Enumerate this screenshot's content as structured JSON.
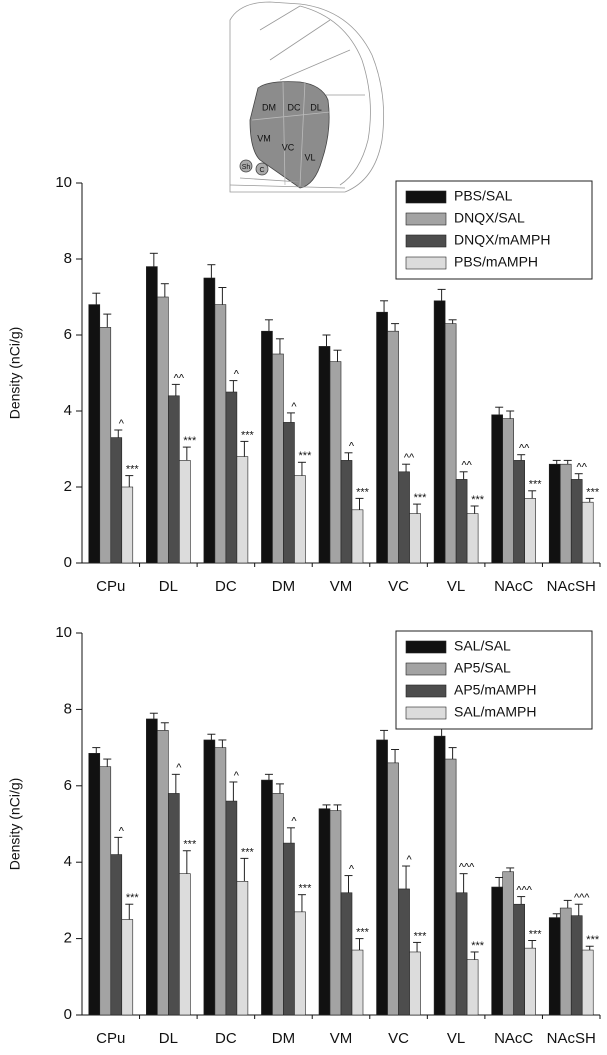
{
  "diagram": {
    "labels": [
      "DM",
      "DC",
      "DL",
      "VM",
      "VC",
      "VL",
      "Sh",
      "C"
    ]
  },
  "chart_data": [
    {
      "type": "bar",
      "ylabel": "Density (nCi/g)",
      "categories": [
        "CPu",
        "DL",
        "DC",
        "DM",
        "VM",
        "VC",
        "VL",
        "NAcC",
        "NAcSH"
      ],
      "ylim": [
        0,
        10
      ],
      "yticks": [
        0,
        2,
        4,
        6,
        8,
        10
      ],
      "legend": "upper right",
      "series": [
        {
          "name": "PBS/SAL",
          "color": "#111111",
          "values": [
            6.8,
            7.8,
            7.5,
            6.1,
            5.7,
            6.6,
            6.9,
            3.9,
            2.6
          ],
          "errors": [
            0.3,
            0.35,
            0.35,
            0.3,
            0.3,
            0.3,
            0.3,
            0.2,
            0.1
          ]
        },
        {
          "name": "DNQX/SAL",
          "color": "#a3a3a3",
          "values": [
            6.2,
            7.0,
            6.8,
            5.5,
            5.3,
            6.1,
            6.3,
            3.8,
            2.6
          ],
          "errors": [
            0.35,
            0.35,
            0.45,
            0.4,
            0.3,
            0.2,
            0.1,
            0.2,
            0.1
          ]
        },
        {
          "name": "DNQX/mAMPH",
          "color": "#4d4d4d",
          "values": [
            3.3,
            4.4,
            4.5,
            3.7,
            2.7,
            2.4,
            2.2,
            2.7,
            2.2
          ],
          "errors": [
            0.2,
            0.3,
            0.3,
            0.25,
            0.2,
            0.2,
            0.2,
            0.15,
            0.15
          ],
          "annotations": [
            "^",
            "^^",
            "^",
            "^",
            "^",
            "^^",
            "^^",
            "^^",
            "^^"
          ]
        },
        {
          "name": "PBS/mAMPH",
          "color": "#dcdcdc",
          "values": [
            2.0,
            2.7,
            2.8,
            2.3,
            1.4,
            1.3,
            1.3,
            1.7,
            1.6
          ],
          "errors": [
            0.3,
            0.35,
            0.4,
            0.35,
            0.3,
            0.25,
            0.2,
            0.2,
            0.1
          ],
          "annotations": [
            "***",
            "***",
            "***",
            "***",
            "***",
            "***",
            "***",
            "***",
            "***"
          ]
        }
      ]
    },
    {
      "type": "bar",
      "ylabel": "Density (nCi/g)",
      "categories": [
        "CPu",
        "DL",
        "DC",
        "DM",
        "VM",
        "VC",
        "VL",
        "NAcC",
        "NAcSH"
      ],
      "ylim": [
        0,
        10
      ],
      "yticks": [
        0,
        2,
        4,
        6,
        8,
        10
      ],
      "legend": "upper right",
      "series": [
        {
          "name": "SAL/SAL",
          "color": "#111111",
          "values": [
            6.85,
            7.75,
            7.2,
            6.15,
            5.4,
            7.2,
            7.3,
            3.35,
            2.55
          ],
          "errors": [
            0.15,
            0.15,
            0.15,
            0.15,
            0.1,
            0.25,
            0.2,
            0.25,
            0.1
          ]
        },
        {
          "name": "AP5/SAL",
          "color": "#a3a3a3",
          "values": [
            6.5,
            7.45,
            7.0,
            5.8,
            5.35,
            6.6,
            6.7,
            3.75,
            2.8
          ],
          "errors": [
            0.2,
            0.2,
            0.2,
            0.25,
            0.15,
            0.35,
            0.3,
            0.1,
            0.2
          ]
        },
        {
          "name": "AP5/mAMPH",
          "color": "#4d4d4d",
          "values": [
            4.2,
            5.8,
            5.6,
            4.5,
            3.2,
            3.3,
            3.2,
            2.9,
            2.6
          ],
          "errors": [
            0.45,
            0.5,
            0.5,
            0.4,
            0.45,
            0.6,
            0.5,
            0.2,
            0.3
          ],
          "annotations": [
            "^",
            "^",
            "^",
            "^",
            "^",
            "^",
            "^^^",
            "^^^",
            "^^^"
          ]
        },
        {
          "name": "SAL/mAMPH",
          "color": "#dcdcdc",
          "values": [
            2.5,
            3.7,
            3.5,
            2.7,
            1.7,
            1.65,
            1.45,
            1.75,
            1.7
          ],
          "errors": [
            0.4,
            0.6,
            0.6,
            0.45,
            0.3,
            0.25,
            0.2,
            0.2,
            0.1
          ],
          "annotations": [
            "***",
            "***",
            "***",
            "***",
            "***",
            "***",
            "***",
            "***",
            "***"
          ]
        }
      ]
    }
  ]
}
